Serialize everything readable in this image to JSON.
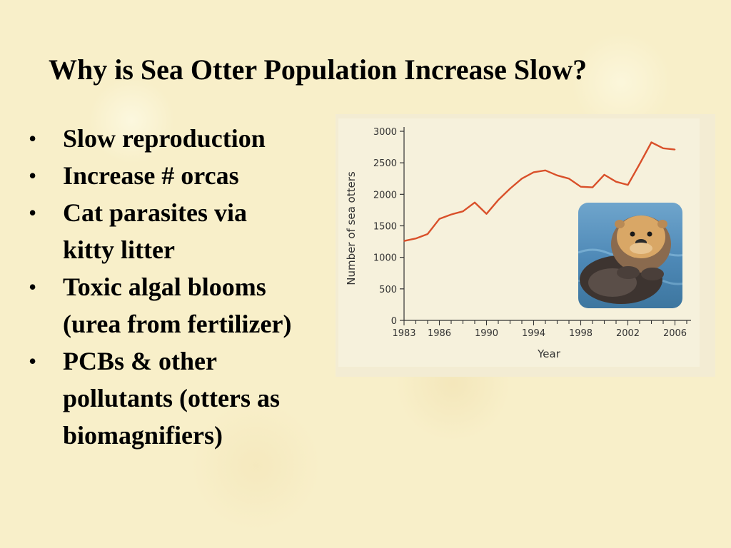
{
  "slide": {
    "title": "Why is Sea Otter Population Increase Slow?",
    "bullet_char": "•",
    "bullets": [
      {
        "lines": [
          "Slow reproduction"
        ]
      },
      {
        "lines": [
          "Increase # orcas"
        ]
      },
      {
        "lines": [
          "Cat parasites via",
          "kitty litter"
        ]
      },
      {
        "lines": [
          "Toxic algal blooms",
          "(urea from fertilizer)"
        ]
      },
      {
        "lines": [
          "PCBs & other",
          "pollutants (otters as",
          "biomagnifiers)"
        ]
      }
    ]
  },
  "chart_data": {
    "type": "line",
    "title": "",
    "xlabel": "Year",
    "ylabel": "Number of sea otters",
    "xlim": [
      1983,
      2007
    ],
    "ylim": [
      0,
      3000
    ],
    "x_ticks": [
      1983,
      1986,
      1990,
      1994,
      1998,
      2002,
      2006
    ],
    "y_ticks": [
      0,
      500,
      1000,
      1500,
      2000,
      2500,
      3000
    ],
    "series_color": "#d9502a",
    "series": [
      {
        "x": [
          1983,
          1984,
          1985,
          1986,
          1987,
          1988,
          1989,
          1990,
          1991,
          1992,
          1993,
          1994,
          1995,
          1996,
          1997,
          1998,
          1999,
          2000,
          2001,
          2002,
          2003,
          2004,
          2005,
          2006
        ],
        "values": [
          1260,
          1300,
          1370,
          1610,
          1680,
          1730,
          1870,
          1690,
          1910,
          2090,
          2250,
          2350,
          2380,
          2300,
          2250,
          2120,
          2110,
          2310,
          2200,
          2150,
          2480,
          2825,
          2730,
          2710
        ]
      }
    ]
  }
}
